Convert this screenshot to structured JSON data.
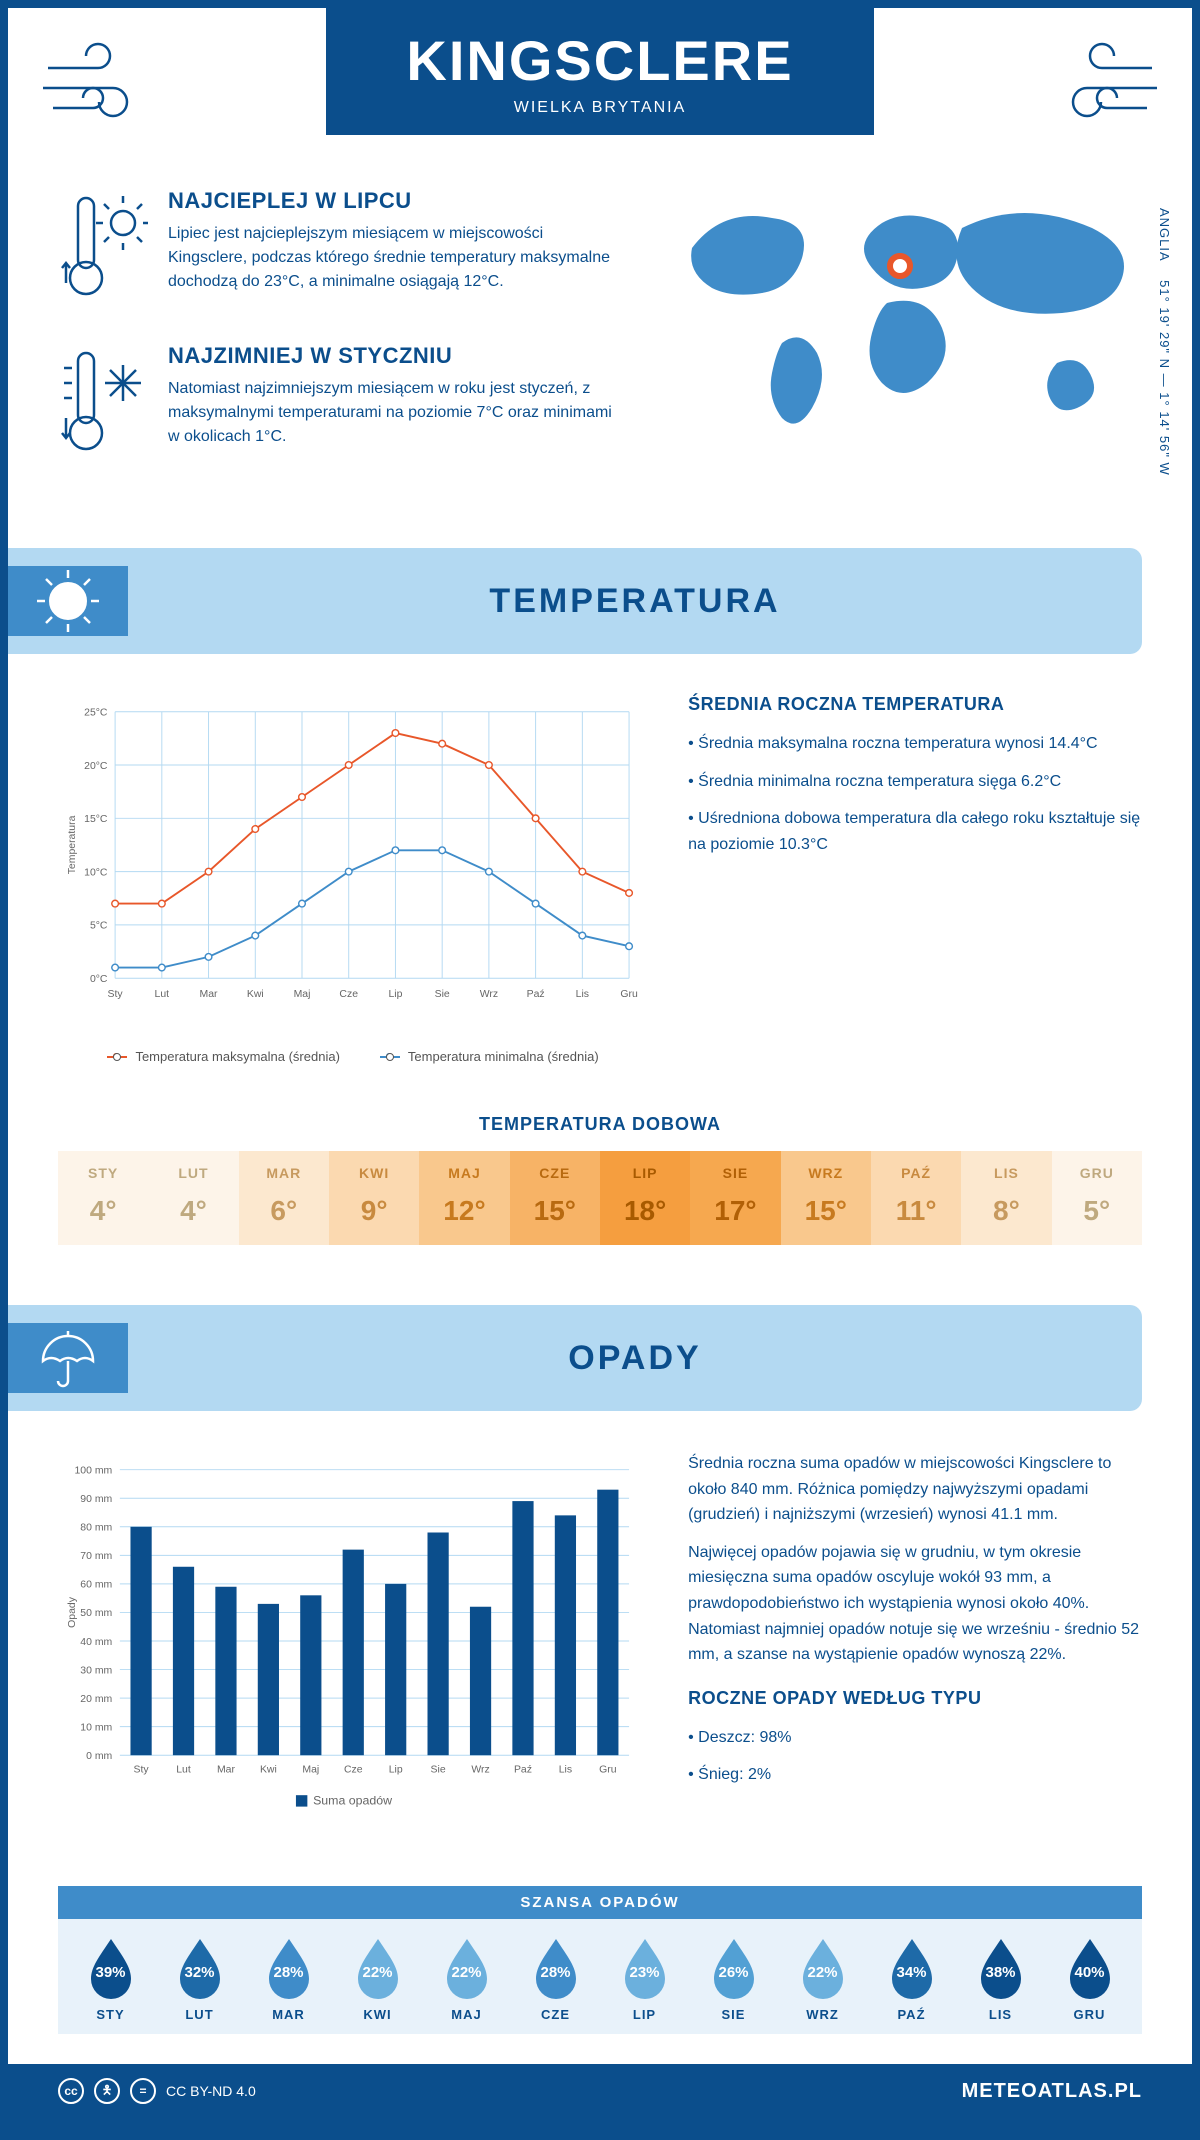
{
  "header": {
    "title": "KINGSCLERE",
    "subtitle": "WIELKA BRYTANIA"
  },
  "coords": {
    "lat": "51° 19' 29\" N",
    "lon": "1° 14' 56\" W",
    "region": "ANGLIA"
  },
  "summary": {
    "warmest": {
      "title": "NAJCIEPLEJ W LIPCU",
      "text": "Lipiec jest najcieplejszym miesiącem w miejscowości Kingsclere, podczas którego średnie temperatury maksymalne dochodzą do 23°C, a minimalne osiągają 12°C."
    },
    "coldest": {
      "title": "NAJZIMNIEJ W STYCZNIU",
      "text": "Natomiast najzimniejszym miesiącem w roku jest styczeń, z maksymalnymi temperaturami na poziomie 7°C oraz minimami w okolicach 1°C."
    }
  },
  "sections": {
    "temperature_title": "TEMPERATURA",
    "precipitation_title": "OPADY"
  },
  "months": [
    "Sty",
    "Lut",
    "Mar",
    "Kwi",
    "Maj",
    "Cze",
    "Lip",
    "Sie",
    "Wrz",
    "Paź",
    "Lis",
    "Gru"
  ],
  "months_upper": [
    "STY",
    "LUT",
    "MAR",
    "KWI",
    "MAJ",
    "CZE",
    "LIP",
    "SIE",
    "WRZ",
    "PAŹ",
    "LIS",
    "GRU"
  ],
  "temp_chart": {
    "type": "line",
    "ylabel": "Temperatura",
    "ylim": [
      0,
      25
    ],
    "ytick_step": 5,
    "ytick_suffix": "°C",
    "grid_color": "#b3d9f2",
    "series": [
      {
        "name": "Temperatura maksymalna (średnia)",
        "color": "#e8572a",
        "values": [
          7,
          7,
          10,
          14,
          17,
          20,
          23,
          22,
          20,
          15,
          10,
          8
        ]
      },
      {
        "name": "Temperatura minimalna (średnia)",
        "color": "#3f8cc9",
        "values": [
          1,
          1,
          2,
          4,
          7,
          10,
          12,
          12,
          10,
          7,
          4,
          3
        ]
      }
    ],
    "label_fontsize": 11
  },
  "temp_text": {
    "heading": "ŚREDNIA ROCZNA TEMPERATURA",
    "bullets": [
      "Średnia maksymalna roczna temperatura wynosi 14.4°C",
      "Średnia minimalna roczna temperatura sięga 6.2°C",
      "Uśredniona dobowa temperatura dla całego roku kształtuje się na poziomie 10.3°C"
    ]
  },
  "daily_temp": {
    "title": "TEMPERATURA DOBOWA",
    "values": [
      4,
      4,
      6,
      9,
      12,
      15,
      18,
      17,
      15,
      11,
      8,
      5
    ],
    "cell_colors": [
      "#fdf4e9",
      "#fdf4e9",
      "#fce8cf",
      "#fbd9b0",
      "#f9c88d",
      "#f7b366",
      "#f59e3f",
      "#f6a84f",
      "#f9c88d",
      "#fbd9b0",
      "#fce8cf",
      "#fdf4e9"
    ],
    "text_colors": [
      "#bfa97f",
      "#bfa97f",
      "#c79a5f",
      "#c88a3f",
      "#c77a1f",
      "#b86a10",
      "#a85a00",
      "#b16006",
      "#c77a1f",
      "#c88a3f",
      "#c79a5f",
      "#bfa97f"
    ]
  },
  "precip_chart": {
    "type": "bar",
    "ylabel": "Opady",
    "ylim": [
      0,
      100
    ],
    "ytick_step": 10,
    "ytick_suffix": " mm",
    "bar_color": "#0b4e8c",
    "grid_color": "#b3d9f2",
    "values": [
      80,
      66,
      59,
      53,
      56,
      72,
      60,
      78,
      52,
      89,
      84,
      93
    ],
    "legend": "Suma opadów",
    "bar_width": 0.5,
    "label_fontsize": 11
  },
  "precip_text": {
    "paragraphs": [
      "Średnia roczna suma opadów w miejscowości Kingsclere to około 840 mm. Różnica pomiędzy najwyższymi opadami (grudzień) i najniższymi (wrzesień) wynosi 41.1 mm.",
      "Najwięcej opadów pojawia się w grudniu, w tym okresie miesięczna suma opadów oscyluje wokół 93 mm, a prawdopodobieństwo ich wystąpienia wynosi około 40%. Natomiast najmniej opadów notuje się we wrześniu - średnio 52 mm, a szanse na wystąpienie opadów wynoszą 22%."
    ],
    "type_heading": "ROCZNE OPADY WEDŁUG TYPU",
    "types": [
      "Deszcz: 98%",
      "Śnieg: 2%"
    ]
  },
  "precip_chance": {
    "title": "SZANSA OPADÓW",
    "values": [
      39,
      32,
      28,
      22,
      22,
      28,
      23,
      26,
      22,
      34,
      38,
      40
    ],
    "drop_colors": [
      "#0b4e8c",
      "#1e6aa8",
      "#3f8cc9",
      "#6bb0dd",
      "#6bb0dd",
      "#3f8cc9",
      "#6bb0dd",
      "#52a0d4",
      "#6bb0dd",
      "#1e6aa8",
      "#0b4e8c",
      "#0b4e8c"
    ]
  },
  "footer": {
    "license": "CC BY-ND 4.0",
    "site": "METEOATLAS.PL"
  },
  "colors": {
    "primary": "#0b4e8c",
    "light": "#b3d9f2",
    "mid": "#3f8cc9"
  }
}
